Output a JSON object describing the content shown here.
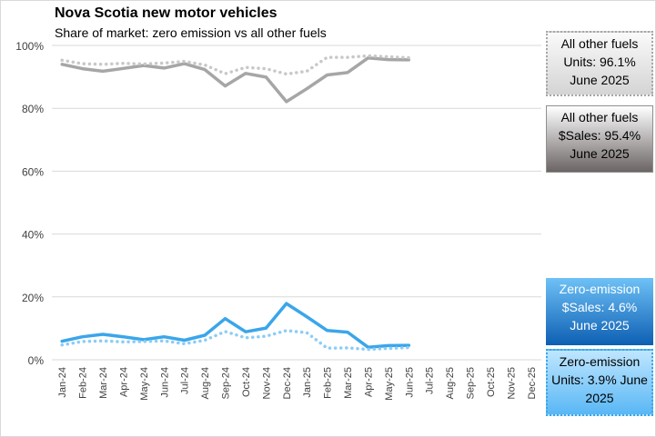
{
  "title": "Nova Scotia new motor vehicles",
  "subtitle": "Share of market: zero emission vs all other fuels",
  "callouts": {
    "other_units": "All other fuels Units: 96.1% June 2025",
    "other_sales": "All other fuels $Sales: 95.4% June 2025",
    "ze_sales": "Zero-emission $Sales: 4.6% June 2025",
    "ze_units": "Zero-emission Units: 3.9% June 2025"
  },
  "colors": {
    "other_sales": "#a6a6a6",
    "other_units": "#c8c8c8",
    "ze_sales": "#3aa6ea",
    "ze_units": "#8ccdf5",
    "grid": "#d9d9d9",
    "axis_text": "#404040"
  },
  "chart_data": {
    "type": "line",
    "title": "Nova Scotia new motor vehicles",
    "subtitle": "Share of market: zero emission vs all other fuels",
    "categories": [
      "Jan-24",
      "Feb-24",
      "Mar-24",
      "Apr-24",
      "May-24",
      "Jun-24",
      "Jul-24",
      "Aug-24",
      "Sep-24",
      "Oct-24",
      "Nov-24",
      "Dec-24",
      "Jan-25",
      "Feb-25",
      "Mar-25",
      "Apr-25",
      "May-25",
      "Jun-25",
      "Jul-25",
      "Aug-25",
      "Sep-25",
      "Oct-25",
      "Nov-25",
      "Dec-25"
    ],
    "y_ticks": [
      "0%",
      "20%",
      "40%",
      "60%",
      "80%",
      "100%"
    ],
    "ylim": [
      0,
      100
    ],
    "grid": true,
    "series": [
      {
        "key": "other_sales",
        "style": "solid",
        "values": [
          94.0,
          92.6,
          91.8,
          92.7,
          93.6,
          92.8,
          94.2,
          92.3,
          87.1,
          91.1,
          89.9,
          82.1,
          86.2,
          90.6,
          91.4,
          96.0,
          95.5,
          95.4,
          null,
          null,
          null,
          null,
          null,
          null
        ]
      },
      {
        "key": "other_units",
        "style": "dotted",
        "values": [
          95.3,
          94.2,
          94.0,
          94.3,
          94.1,
          94.4,
          94.9,
          93.8,
          91.0,
          93.0,
          92.6,
          90.9,
          91.8,
          96.2,
          96.2,
          96.7,
          96.4,
          96.1,
          null,
          null,
          null,
          null,
          null,
          null
        ]
      },
      {
        "key": "ze_sales",
        "style": "solid",
        "values": [
          5.9,
          7.3,
          8.1,
          7.3,
          6.4,
          7.3,
          6.2,
          7.8,
          13.1,
          8.9,
          10.1,
          17.9,
          13.7,
          9.3,
          8.8,
          4.0,
          4.5,
          4.6,
          null,
          null,
          null,
          null,
          null,
          null
        ]
      },
      {
        "key": "ze_units",
        "style": "dotted",
        "values": [
          4.7,
          5.8,
          6.0,
          5.7,
          5.8,
          6.0,
          5.1,
          6.2,
          9.0,
          7.0,
          7.5,
          9.3,
          8.6,
          3.7,
          3.8,
          3.3,
          3.6,
          3.9,
          null,
          null,
          null,
          null,
          null,
          null
        ]
      }
    ]
  }
}
